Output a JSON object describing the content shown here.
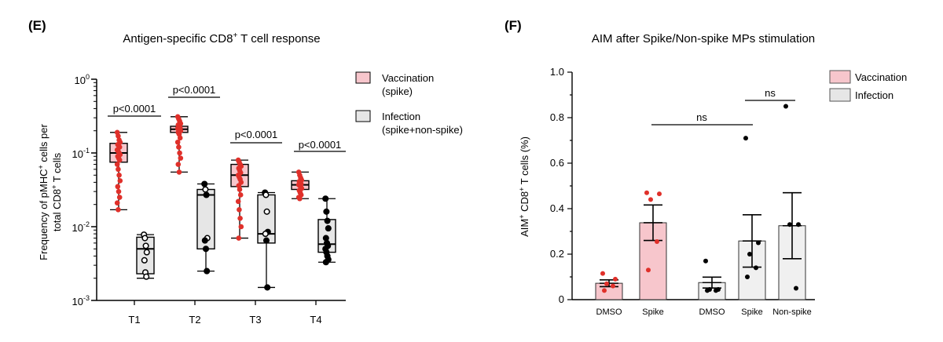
{
  "panel_e": {
    "panel_label": "(E)",
    "title": "Antigen-specific CD8",
    "title_sup": "+",
    "title_tail": " T cell response",
    "ylabel_line1_a": "Frequency of pMHC",
    "ylabel_line1_sup": "+",
    "ylabel_line1_b": " cells per",
    "ylabel_line2": "total CD8",
    "ylabel_line2_sup": "+",
    "ylabel_line2_b": " T cells",
    "yticks": [
      {
        "base": "10",
        "exp": "0"
      },
      {
        "base": "10",
        "exp": "-1"
      },
      {
        "base": "10",
        "exp": "-2"
      },
      {
        "base": "10",
        "exp": "-3"
      }
    ],
    "legend": [
      {
        "line1": "Vaccination",
        "line2": "(spike)"
      },
      {
        "line1": "Infection",
        "line2": "(spike+non-spike)"
      }
    ],
    "colors": {
      "vaccination_fill": "#f7c6cc",
      "vaccination_point": "#e0302a",
      "infection_fill": "#e6e6e6"
    }
  },
  "panel_f": {
    "panel_label": "(F)",
    "title": "AIM after Spike/Non-spike MPs stimulation",
    "ylabel_a": "AIM",
    "ylabel_sup": "+",
    "ylabel_b": " CD8",
    "ylabel_sup2": "+",
    "ylabel_c": " T cells (%)",
    "legend": [
      {
        "label": "Vaccination"
      },
      {
        "label": "Infection"
      }
    ],
    "colors": {
      "vaccination_fill": "#f7c6cc",
      "vaccination_point": "#e0302a",
      "infection_fill": "#f0f0f0"
    }
  },
  "chart_data": [
    {
      "type": "box",
      "yscale": "log",
      "ylim": [
        0.001,
        1
      ],
      "categories": [
        "T1",
        "T2",
        "T3",
        "T4"
      ],
      "series": [
        {
          "name": "Vaccination (spike)",
          "boxes": [
            {
              "min": 0.017,
              "q1": 0.075,
              "median": 0.1,
              "q3": 0.135,
              "max": 0.19,
              "points": [
                0.19,
                0.17,
                0.15,
                0.14,
                0.13,
                0.125,
                0.12,
                0.11,
                0.105,
                0.1,
                0.095,
                0.09,
                0.085,
                0.08,
                0.07,
                0.06,
                0.05,
                0.042,
                0.035,
                0.03,
                0.025,
                0.021,
                0.017
              ]
            },
            {
              "min": 0.055,
              "q1": 0.19,
              "median": 0.21,
              "q3": 0.23,
              "max": 0.31,
              "points": [
                0.31,
                0.29,
                0.27,
                0.25,
                0.24,
                0.23,
                0.22,
                0.215,
                0.21,
                0.205,
                0.2,
                0.19,
                0.18,
                0.16,
                0.14,
                0.12,
                0.1,
                0.085,
                0.07,
                0.055
              ]
            },
            {
              "min": 0.007,
              "q1": 0.035,
              "median": 0.05,
              "q3": 0.07,
              "max": 0.08,
              "points": [
                0.08,
                0.075,
                0.07,
                0.066,
                0.062,
                0.058,
                0.054,
                0.05,
                0.047,
                0.044,
                0.04,
                0.036,
                0.032,
                0.027,
                0.022,
                0.017,
                0.013,
                0.01,
                0.007
              ]
            },
            {
              "min": 0.024,
              "q1": 0.032,
              "median": 0.037,
              "q3": 0.042,
              "max": 0.055,
              "points": [
                0.055,
                0.05,
                0.046,
                0.043,
                0.041,
                0.039,
                0.038,
                0.037,
                0.036,
                0.035,
                0.033,
                0.031,
                0.029,
                0.027,
                0.025,
                0.024
              ]
            }
          ]
        },
        {
          "name": "Infection (spike+non-spike)",
          "boxes": [
            {
              "min": 0.002,
              "q1": 0.0023,
              "median": 0.005,
              "q3": 0.0072,
              "max": 0.0078,
              "points": [
                {
                  "v": 0.0078,
                  "filled": false
                },
                {
                  "v": 0.007,
                  "filled": false
                },
                {
                  "v": 0.0055,
                  "filled": false
                },
                {
                  "v": 0.0045,
                  "filled": false
                },
                {
                  "v": 0.0035,
                  "filled": false
                },
                {
                  "v": 0.0024,
                  "filled": false
                },
                {
                  "v": 0.0021,
                  "filled": false
                }
              ]
            },
            {
              "min": 0.0025,
              "q1": 0.005,
              "median": 0.027,
              "q3": 0.032,
              "max": 0.038,
              "points": [
                {
                  "v": 0.038,
                  "filled": true
                },
                {
                  "v": 0.032,
                  "filled": false
                },
                {
                  "v": 0.027,
                  "filled": true
                },
                {
                  "v": 0.007,
                  "filled": false
                },
                {
                  "v": 0.0065,
                  "filled": true
                },
                {
                  "v": 0.005,
                  "filled": true
                },
                {
                  "v": 0.0025,
                  "filled": true
                }
              ]
            },
            {
              "min": 0.0015,
              "q1": 0.006,
              "median": 0.008,
              "q3": 0.027,
              "max": 0.029,
              "points": [
                {
                  "v": 0.029,
                  "filled": true
                },
                {
                  "v": 0.027,
                  "filled": false
                },
                {
                  "v": 0.016,
                  "filled": false
                },
                {
                  "v": 0.0085,
                  "filled": true
                },
                {
                  "v": 0.008,
                  "filled": false
                },
                {
                  "v": 0.0065,
                  "filled": true
                },
                {
                  "v": 0.0015,
                  "filled": true
                }
              ]
            },
            {
              "min": 0.0033,
              "q1": 0.0045,
              "median": 0.0058,
              "q3": 0.0125,
              "max": 0.024,
              "points": [
                {
                  "v": 0.024,
                  "filled": true
                },
                {
                  "v": 0.016,
                  "filled": true
                },
                {
                  "v": 0.012,
                  "filled": true
                },
                {
                  "v": 0.0095,
                  "filled": true
                },
                {
                  "v": 0.007,
                  "filled": true
                },
                {
                  "v": 0.006,
                  "filled": true
                },
                {
                  "v": 0.0055,
                  "filled": true
                },
                {
                  "v": 0.005,
                  "filled": true
                },
                {
                  "v": 0.0045,
                  "filled": true
                },
                {
                  "v": 0.004,
                  "filled": true
                },
                {
                  "v": 0.0036,
                  "filled": true
                },
                {
                  "v": 0.0033,
                  "filled": true
                }
              ]
            }
          ]
        }
      ],
      "annotations": [
        {
          "label": "p<0.0001",
          "category": "T1"
        },
        {
          "label": "p<0.0001",
          "category": "T2"
        },
        {
          "label": "p<0.0001",
          "category": "T3"
        },
        {
          "label": "p<0.0001",
          "category": "T4"
        }
      ]
    },
    {
      "type": "bar",
      "ylim": [
        0,
        1.0
      ],
      "yticks": [
        "0",
        "0.2",
        "0.4",
        "0.6",
        "0.8",
        "1.0"
      ],
      "categories": [
        "DMSO",
        "Spike",
        "DMSO",
        "Spike",
        "Non-spike"
      ],
      "bars": [
        {
          "category": "DMSO",
          "group": "Vaccination",
          "mean": 0.072,
          "sem": 0.015,
          "points": [
            0.115,
            0.09,
            0.07,
            0.06,
            0.04
          ]
        },
        {
          "category": "Spike",
          "group": "Vaccination",
          "mean": 0.338,
          "sem": 0.078,
          "points": [
            0.47,
            0.465,
            0.44,
            0.255,
            0.13
          ]
        },
        {
          "category": "DMSO",
          "group": "Infection",
          "mean": 0.075,
          "sem": 0.024,
          "points": [
            0.17,
            0.045,
            0.045,
            0.04,
            0.04
          ]
        },
        {
          "category": "Spike",
          "group": "Infection",
          "mean": 0.258,
          "sem": 0.115,
          "points": [
            0.71,
            0.25,
            0.2,
            0.14,
            0.1
          ]
        },
        {
          "category": "Non-spike",
          "group": "Infection",
          "mean": 0.325,
          "sem": 0.145,
          "points": [
            0.85,
            0.33,
            0.33,
            0.05
          ]
        }
      ],
      "annotations": [
        {
          "label": "ns",
          "from": 1,
          "to": 3
        },
        {
          "label": "ns",
          "from": 3,
          "to": 4
        }
      ]
    }
  ]
}
